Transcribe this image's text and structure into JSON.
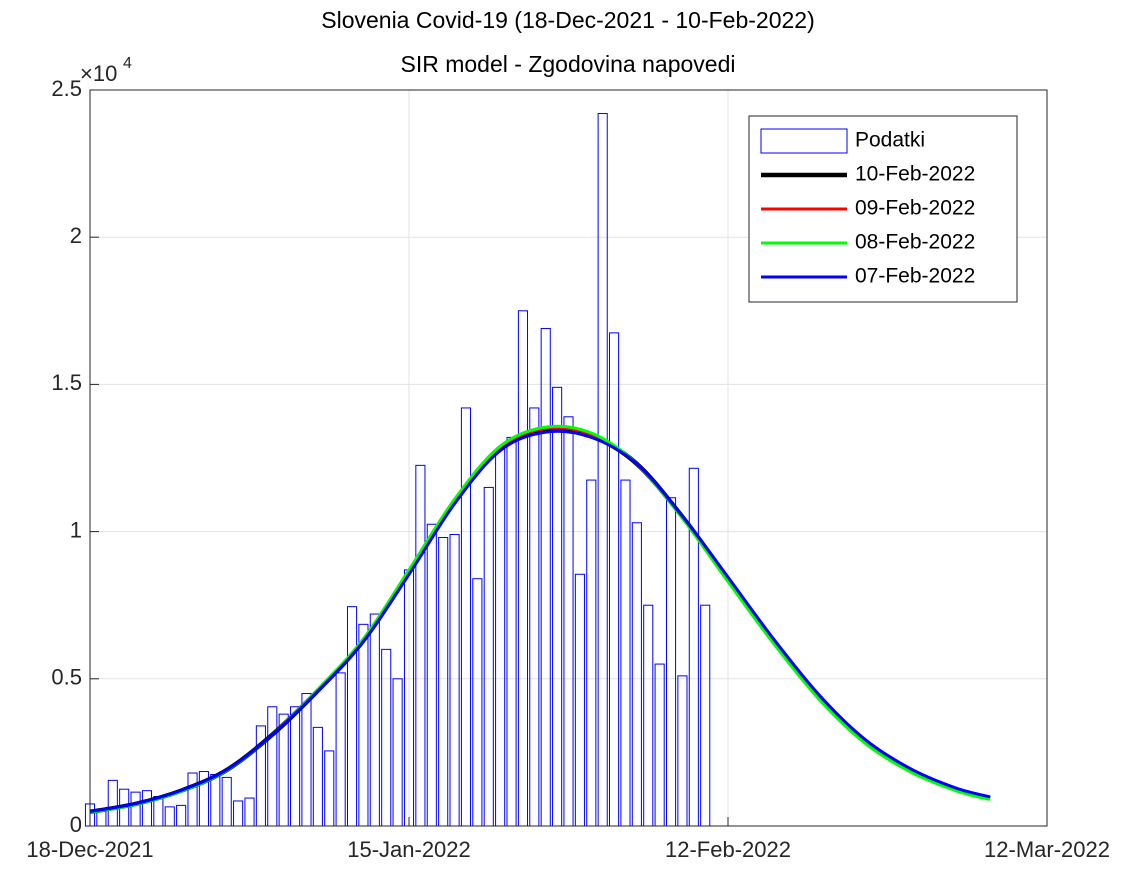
{
  "chart_data": {
    "type": "bar",
    "title": "Slovenia Covid-19 (18-Dec-2021 - 10-Feb-2022)",
    "subtitle": "SIR model - Zgodovina napovedi",
    "y_multiplier": "×10",
    "y_multiplier_exponent": "4",
    "xlim": [
      "2021-12-18",
      "2022-03-12"
    ],
    "xticks": [
      {
        "value": "2021-12-18",
        "label": "18-Dec-2021"
      },
      {
        "value": "2022-01-15",
        "label": "15-Jan-2022"
      },
      {
        "value": "2022-02-12",
        "label": "12-Feb-2022"
      },
      {
        "value": "2022-03-12",
        "label": "12-Mar-2022"
      }
    ],
    "ylim": [
      0,
      25000
    ],
    "yticks": [
      0,
      {
        "value": 5000,
        "label": "0.5"
      },
      {
        "value": 10000,
        "label": "1"
      },
      {
        "value": 15000,
        "label": "1.5"
      },
      {
        "value": 20000,
        "label": "2"
      },
      {
        "value": 25000,
        "label": "2.5"
      }
    ],
    "grid": true,
    "legend": "northeast",
    "series": [
      {
        "name": "Podatki",
        "type": "bar",
        "color": "#0000ff",
        "x": [
          "2021-12-18",
          "2021-12-19",
          "2021-12-20",
          "2021-12-21",
          "2021-12-22",
          "2021-12-23",
          "2021-12-24",
          "2021-12-25",
          "2021-12-26",
          "2021-12-27",
          "2021-12-28",
          "2021-12-29",
          "2021-12-30",
          "2021-12-31",
          "2022-01-01",
          "2022-01-02",
          "2022-01-03",
          "2022-01-04",
          "2022-01-05",
          "2022-01-06",
          "2022-01-07",
          "2022-01-08",
          "2022-01-09",
          "2022-01-10",
          "2022-01-11",
          "2022-01-12",
          "2022-01-13",
          "2022-01-14",
          "2022-01-15",
          "2022-01-16",
          "2022-01-17",
          "2022-01-18",
          "2022-01-19",
          "2022-01-20",
          "2022-01-21",
          "2022-01-22",
          "2022-01-23",
          "2022-01-24",
          "2022-01-25",
          "2022-01-26",
          "2022-01-27",
          "2022-01-28",
          "2022-01-29",
          "2022-01-30",
          "2022-01-31",
          "2022-02-01",
          "2022-02-02",
          "2022-02-03",
          "2022-02-04",
          "2022-02-05",
          "2022-02-06",
          "2022-02-07",
          "2022-02-08",
          "2022-02-09",
          "2022-02-10"
        ],
        "values": [
          750,
          500,
          1550,
          1250,
          1150,
          1200,
          1000,
          650,
          700,
          1800,
          1850,
          1750,
          1650,
          850,
          950,
          3400,
          4050,
          3800,
          4050,
          4500,
          3350,
          2550,
          5200,
          7450,
          6850,
          7200,
          6000,
          5000,
          8700,
          12250,
          10250,
          9800,
          9900,
          14200,
          8400,
          11500,
          12800,
          13200,
          17500,
          14200,
          16900,
          14900,
          13900,
          8550,
          11750,
          24200,
          16750,
          11750,
          10300,
          7500,
          5500,
          11150,
          5100,
          12150,
          7500
        ]
      },
      {
        "name": "10-Feb-2022",
        "type": "line",
        "color": "#000000",
        "width": 4.5,
        "x": [
          "2021-12-18",
          "2021-12-22",
          "2021-12-26",
          "2021-12-30",
          "2022-01-03",
          "2022-01-07",
          "2022-01-11",
          "2022-01-15",
          "2022-01-19",
          "2022-01-23",
          "2022-01-27",
          "2022-01-31",
          "2022-02-04",
          "2022-02-08",
          "2022-02-12",
          "2022-02-16",
          "2022-02-20",
          "2022-02-24",
          "2022-02-28",
          "2022-03-04",
          "2022-03-07"
        ],
        "values": [
          480,
          750,
          1200,
          1900,
          3100,
          4600,
          6300,
          8600,
          11000,
          12800,
          13450,
          13250,
          12300,
          10500,
          8400,
          6300,
          4400,
          2900,
          1900,
          1250,
          950
        ]
      },
      {
        "name": "09-Feb-2022",
        "type": "line",
        "color": "#ff0000",
        "width": 3,
        "x": [
          "2021-12-18",
          "2021-12-22",
          "2021-12-26",
          "2021-12-30",
          "2022-01-03",
          "2022-01-07",
          "2022-01-11",
          "2022-01-15",
          "2022-01-19",
          "2022-01-23",
          "2022-01-27",
          "2022-01-31",
          "2022-02-04",
          "2022-02-08",
          "2022-02-12",
          "2022-02-16",
          "2022-02-20",
          "2022-02-24",
          "2022-02-28",
          "2022-03-04",
          "2022-03-07"
        ],
        "values": [
          470,
          740,
          1190,
          1900,
          3100,
          4620,
          6330,
          8650,
          11050,
          12850,
          13500,
          13300,
          12300,
          10480,
          8350,
          6250,
          4350,
          2850,
          1870,
          1230,
          930
        ]
      },
      {
        "name": "08-Feb-2022",
        "type": "line",
        "color": "#00ff00",
        "width": 3,
        "x": [
          "2021-12-18",
          "2021-12-22",
          "2021-12-26",
          "2021-12-30",
          "2022-01-03",
          "2022-01-07",
          "2022-01-11",
          "2022-01-15",
          "2022-01-19",
          "2022-01-23",
          "2022-01-27",
          "2022-01-31",
          "2022-02-04",
          "2022-02-08",
          "2022-02-12",
          "2022-02-16",
          "2022-02-20",
          "2022-02-24",
          "2022-02-28",
          "2022-03-04",
          "2022-03-07"
        ],
        "values": [
          460,
          730,
          1180,
          1890,
          3100,
          4640,
          6360,
          8700,
          11100,
          12900,
          13550,
          13350,
          12300,
          10450,
          8300,
          6200,
          4300,
          2820,
          1840,
          1200,
          900
        ]
      },
      {
        "name": "07-Feb-2022",
        "type": "line",
        "color": "#0000ff",
        "width": 3,
        "x": [
          "2021-12-18",
          "2021-12-22",
          "2021-12-26",
          "2021-12-30",
          "2022-01-03",
          "2022-01-07",
          "2022-01-11",
          "2022-01-15",
          "2022-01-19",
          "2022-01-23",
          "2022-01-27",
          "2022-01-31",
          "2022-02-04",
          "2022-02-08",
          "2022-02-12",
          "2022-02-16",
          "2022-02-20",
          "2022-02-24",
          "2022-02-28",
          "2022-03-04",
          "2022-03-07"
        ],
        "values": [
          490,
          760,
          1210,
          1910,
          3100,
          4580,
          6270,
          8550,
          10950,
          12750,
          13380,
          13200,
          12300,
          10520,
          8450,
          6350,
          4450,
          2950,
          1950,
          1290,
          990
        ]
      }
    ]
  }
}
